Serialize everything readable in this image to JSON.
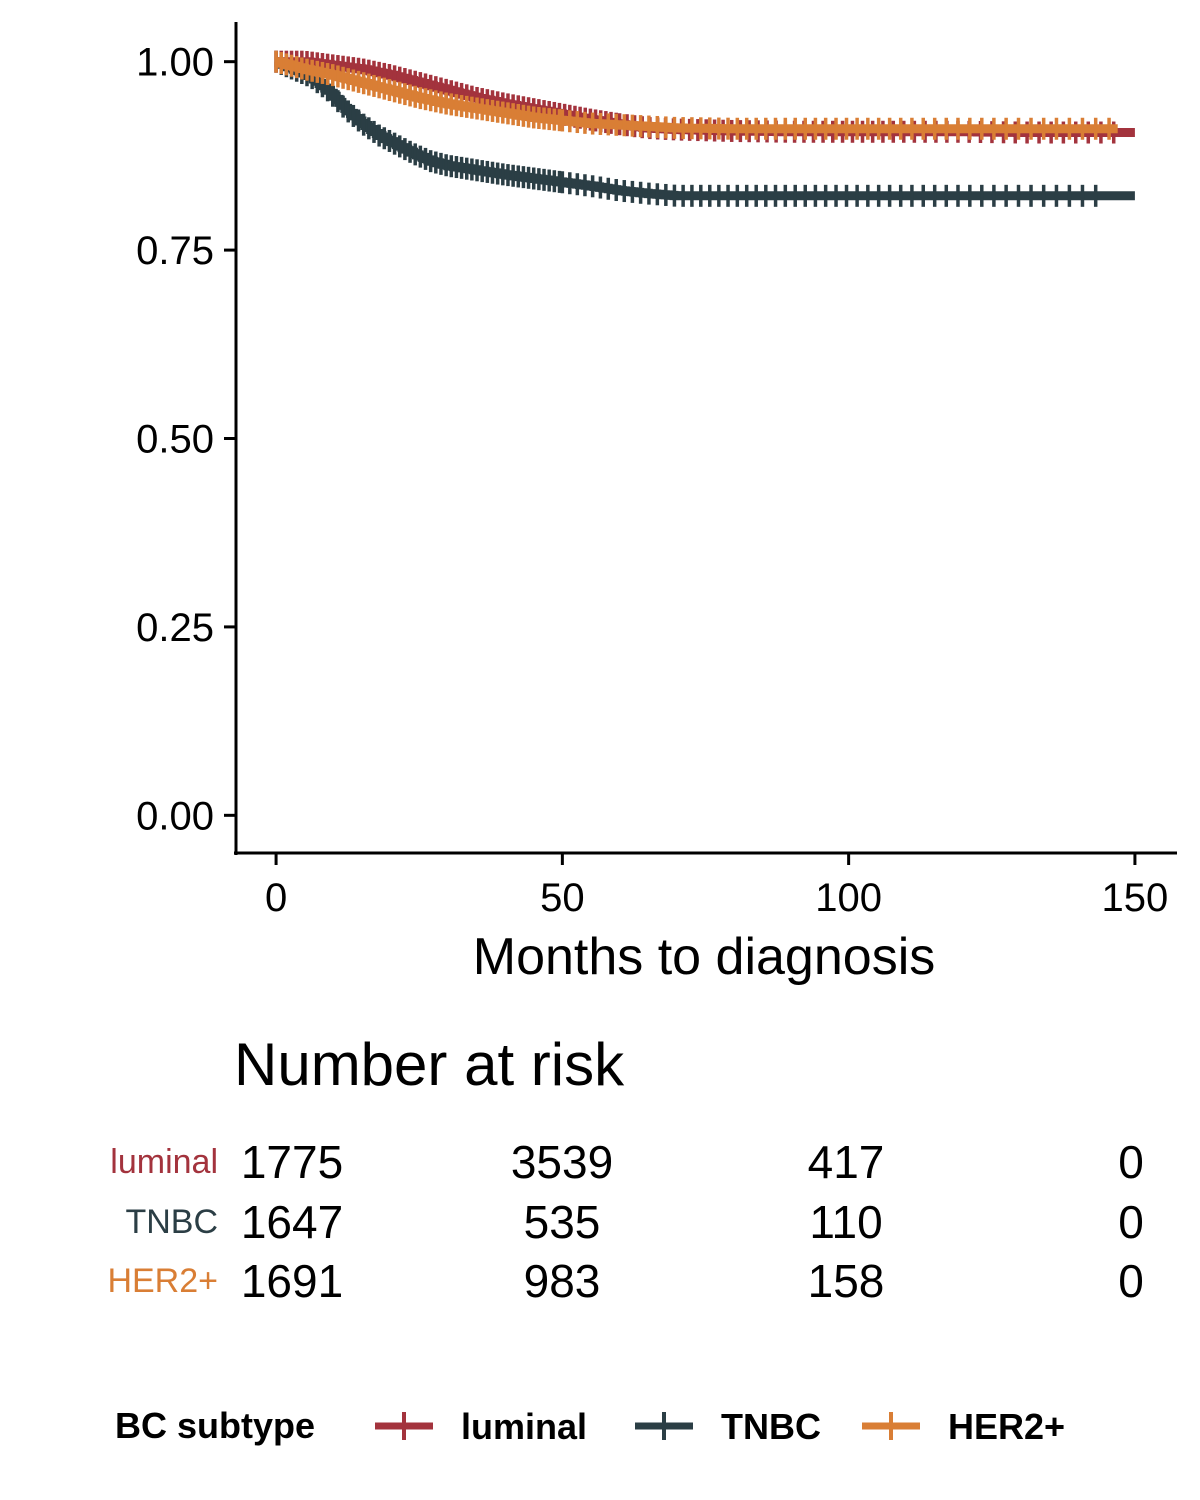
{
  "chart_data": {
    "type": "line",
    "subtype": "kaplan-meier",
    "title": "",
    "xlabel": "Months to diagnosis",
    "ylabel": "",
    "xlim": [
      -7,
      157
    ],
    "ylim": [
      -0.05,
      1.05
    ],
    "x_ticks": [
      0,
      50,
      100,
      150
    ],
    "x_tick_labels": [
      "0",
      "50",
      "100",
      "150"
    ],
    "y_ticks": [
      0,
      0.25,
      0.5,
      0.75,
      1.0
    ],
    "y_tick_labels": [
      "0.00",
      "0.25",
      "0.50",
      "0.75",
      "1.00"
    ],
    "grid": false,
    "series": [
      {
        "name": "luminal",
        "color": "#A3333D",
        "x": [
          0,
          5,
          10,
          15,
          20,
          25,
          30,
          35,
          40,
          45,
          50,
          55,
          60,
          65,
          70,
          80,
          90,
          100,
          110,
          120,
          130,
          140,
          150
        ],
        "y": [
          1.0,
          1.0,
          0.995,
          0.99,
          0.982,
          0.972,
          0.962,
          0.952,
          0.944,
          0.937,
          0.93,
          0.923,
          0.917,
          0.912,
          0.91,
          0.908,
          0.907,
          0.907,
          0.907,
          0.907,
          0.906,
          0.906,
          0.906
        ],
        "censor_from": 60,
        "censor_to": 148
      },
      {
        "name": "TNBC",
        "color": "#2B3E45",
        "x": [
          0,
          3,
          6,
          9,
          12,
          15,
          18,
          21,
          24,
          27,
          30,
          35,
          40,
          45,
          50,
          55,
          60,
          65,
          70,
          80,
          90,
          100,
          110,
          120,
          130,
          140,
          150
        ],
        "y": [
          1.0,
          0.99,
          0.98,
          0.962,
          0.938,
          0.918,
          0.902,
          0.89,
          0.878,
          0.868,
          0.862,
          0.856,
          0.85,
          0.845,
          0.84,
          0.835,
          0.829,
          0.825,
          0.822,
          0.822,
          0.822,
          0.822,
          0.822,
          0.822,
          0.822,
          0.822,
          0.822
        ],
        "censor_from": 50,
        "censor_to": 145
      },
      {
        "name": "HER2+",
        "color": "#D97E35",
        "x": [
          0,
          5,
          10,
          15,
          20,
          25,
          30,
          35,
          40,
          45,
          50,
          55,
          60,
          65,
          70,
          80,
          90,
          100,
          110,
          120,
          130,
          140,
          147
        ],
        "y": [
          1.0,
          0.99,
          0.982,
          0.972,
          0.962,
          0.952,
          0.944,
          0.938,
          0.932,
          0.926,
          0.922,
          0.918,
          0.916,
          0.914,
          0.912,
          0.911,
          0.911,
          0.911,
          0.911,
          0.911,
          0.911,
          0.911,
          0.911
        ],
        "censor_from": 50,
        "censor_to": 147
      }
    ],
    "risk_table": {
      "title": "Number at risk",
      "times": [
        0,
        50,
        100,
        150
      ],
      "rows": [
        {
          "group": "luminal",
          "color": "#A3333D",
          "values": [
            "1775",
            "3539",
            "417",
            "0"
          ]
        },
        {
          "group": "TNBC",
          "color": "#2B3E45",
          "values": [
            "1647",
            "535",
            "110",
            "0"
          ]
        },
        {
          "group": "HER2+",
          "color": "#D97E35",
          "values": [
            "1691",
            "983",
            "158",
            "0"
          ]
        }
      ]
    },
    "legend": {
      "title": "BC subtype",
      "position": "bottom",
      "entries": [
        "luminal",
        "TNBC",
        "HER2+"
      ]
    }
  }
}
